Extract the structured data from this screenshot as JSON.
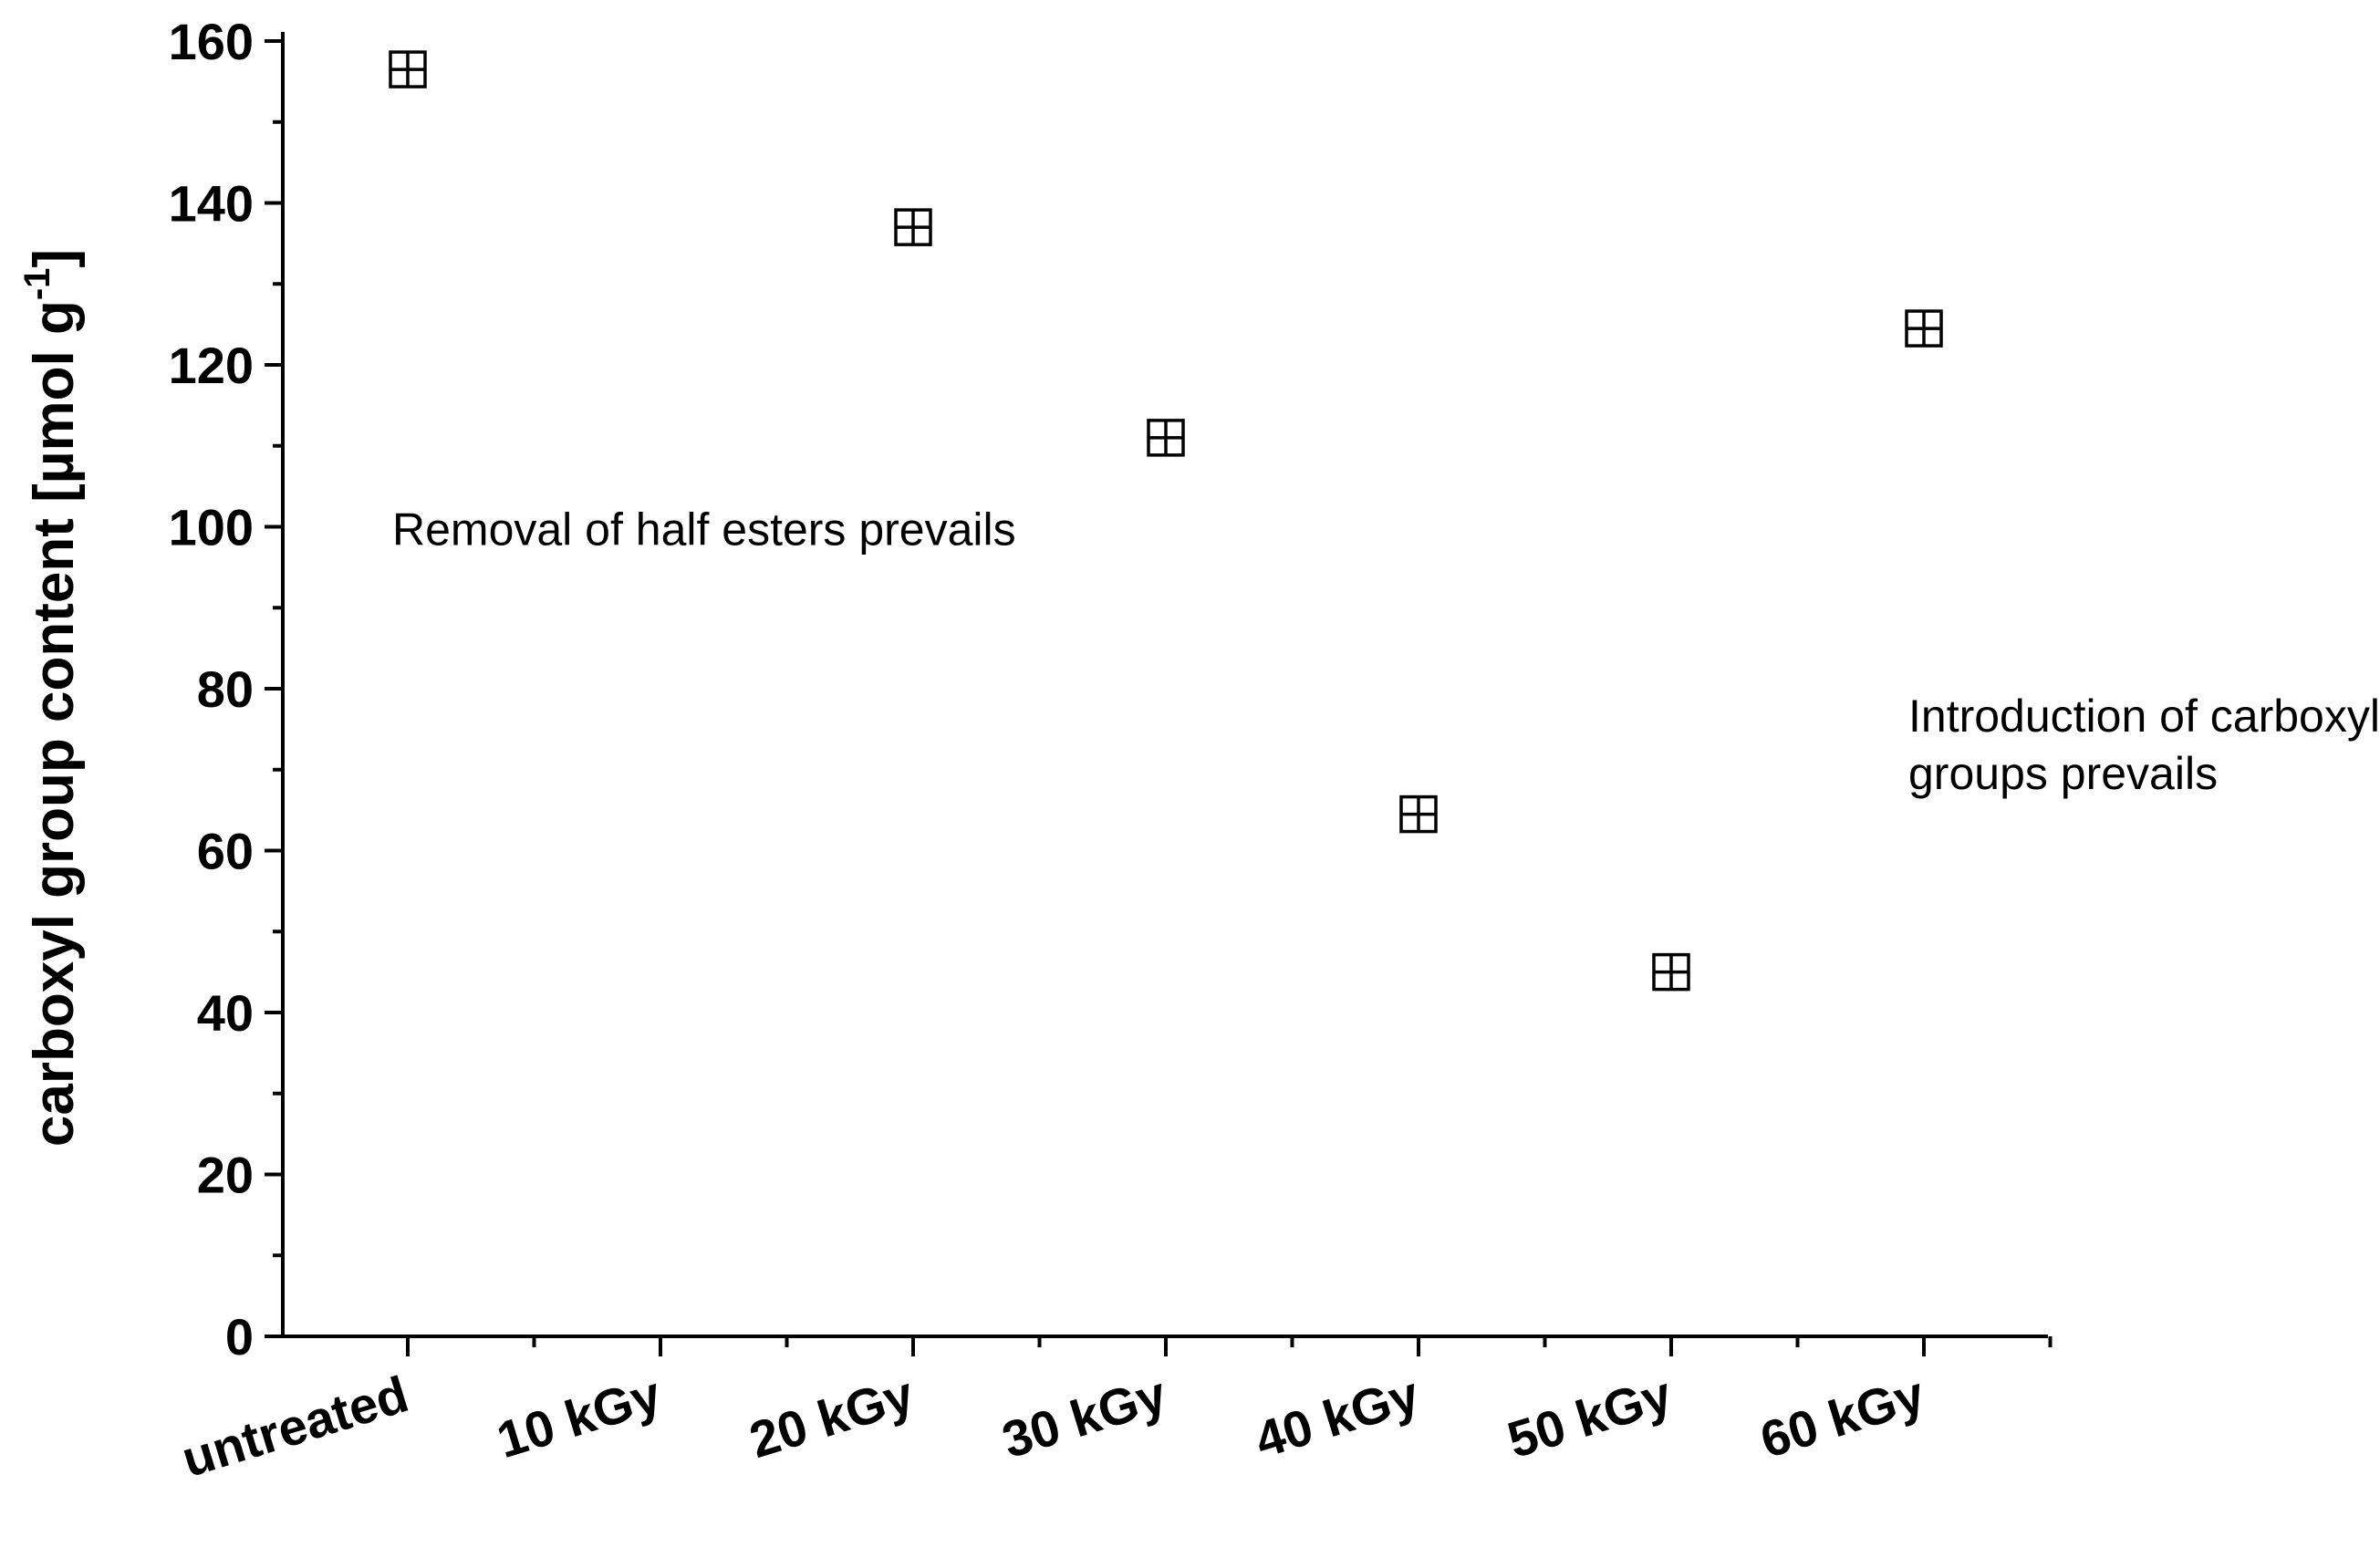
{
  "chart_data": {
    "type": "scatter",
    "categories": [
      "untreated",
      "10 kGy",
      "20 kGy",
      "30 kGy",
      "40 kGy",
      "50 kGy",
      "60 kGy"
    ],
    "points": [
      {
        "category": "untreated",
        "value": 156.5
      },
      {
        "category": "20 kGy",
        "value": 137
      },
      {
        "category": "30 kGy",
        "value": 111
      },
      {
        "category": "40 kGy",
        "value": 64.5
      },
      {
        "category": "50 kGy",
        "value": 45
      },
      {
        "category": "60 kGy",
        "value": 124.5
      }
    ],
    "ylabel": "carboxyl group content [µmol g",
    "ylabel_superscript": "-1",
    "ylabel_suffix": "]",
    "ylim": [
      0,
      160
    ],
    "yticks": [
      "0",
      "20",
      "40",
      "60",
      "80",
      "100",
      "120",
      "140",
      "160"
    ],
    "annotations": [
      {
        "lines": [
          "Removal of half esters prevails"
        ],
        "anchor_category": "untreated",
        "anchor_value": 93
      },
      {
        "lines": [
          "Introduction of carboxyl",
          "groups prevails"
        ],
        "anchor_category": "60 kGy",
        "anchor_value": 70
      }
    ],
    "marker": "square-with-cross",
    "grid": false,
    "legend": "none"
  }
}
